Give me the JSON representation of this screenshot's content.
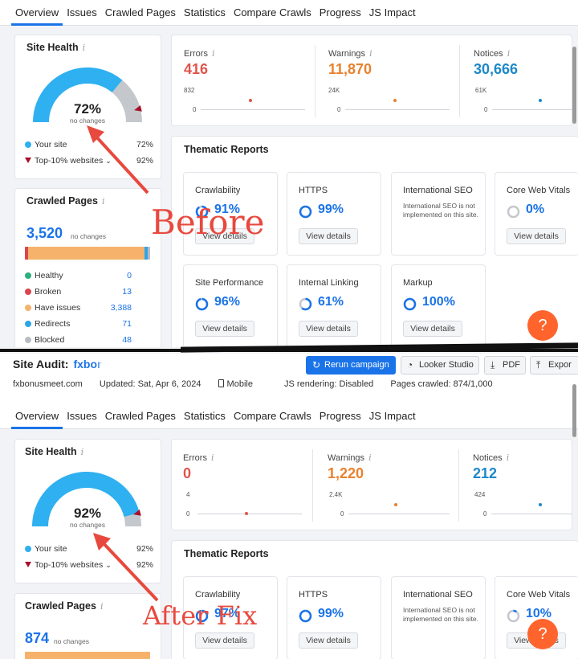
{
  "tabs": [
    "Overview",
    "Issues",
    "Crawled Pages",
    "Statistics",
    "Compare Crawls",
    "Progress",
    "JS Impact"
  ],
  "site_health": {
    "title": "Site Health",
    "info": "i",
    "your_site_label": "Your site",
    "top10_label": "Top-10% websites",
    "change": "no changes"
  },
  "metric_labels": {
    "errors": "Errors",
    "warnings": "Warnings",
    "notices": "Notices"
  },
  "crawled_title": "Crawled Pages",
  "thematic_title": "Thematic Reports",
  "view_details": "View details",
  "intl_seo_note": "International SEO is not implemented on this site.",
  "help": "?",
  "before": {
    "health_pct": "72%",
    "health_value": 72,
    "your_site": "72%",
    "top10": "92%",
    "errors": {
      "value": "416",
      "max": "832",
      "zero": "0"
    },
    "warnings": {
      "value": "11,870",
      "max": "24K",
      "zero": "0"
    },
    "notices": {
      "value": "30,666",
      "max": "61K",
      "zero": "0"
    },
    "crawled_total": "3,520",
    "crawled_note": "no changes",
    "crawled_rows": [
      {
        "label": "Healthy",
        "value": "0",
        "color": "#2bb17c"
      },
      {
        "label": "Broken",
        "value": "13",
        "color": "#d9464c"
      },
      {
        "label": "Have issues",
        "value": "3,388",
        "color": "#f6b26b"
      },
      {
        "label": "Redirects",
        "value": "71",
        "color": "#2fa5e9"
      },
      {
        "label": "Blocked",
        "value": "48",
        "color": "#b8bcc3"
      }
    ],
    "themes": [
      {
        "name": "Crawlability",
        "pct": "91%",
        "value": 91
      },
      {
        "name": "HTTPS",
        "pct": "99%",
        "value": 99
      },
      {
        "name": "International SEO"
      },
      {
        "name": "Core Web Vitals",
        "pct": "0%",
        "value": 0
      },
      {
        "name": "Site Performance",
        "pct": "96%",
        "value": 96
      },
      {
        "name": "Internal Linking",
        "pct": "61%",
        "value": 61
      },
      {
        "name": "Markup",
        "pct": "100%",
        "value": 100
      }
    ]
  },
  "after": {
    "audit_title": "Site Audit:",
    "audit_domain": "fxbor",
    "buttons": {
      "rerun": "Rerun campaign",
      "looker": "Looker Studio",
      "pdf": "PDF",
      "export": "Expor"
    },
    "meta": {
      "domain": "fxbonusmeet.com",
      "updated": "Updated: Sat, Apr 6, 2024",
      "device": "Mobile",
      "js": "JS rendering: Disabled",
      "pages": "Pages crawled: 874/1,000"
    },
    "health_pct": "92%",
    "health_value": 92,
    "your_site": "92%",
    "top10": "92%",
    "errors": {
      "value": "0",
      "max": "4",
      "zero": "0"
    },
    "warnings": {
      "value": "1,220",
      "max": "2.4K",
      "zero": "0"
    },
    "notices": {
      "value": "212",
      "max": "424",
      "zero": "0"
    },
    "crawled_total": "874",
    "crawled_note": "no changes",
    "themes": [
      {
        "name": "Crawlability",
        "pct": "97%",
        "value": 97
      },
      {
        "name": "HTTPS",
        "pct": "99%",
        "value": 99
      },
      {
        "name": "International SEO"
      },
      {
        "name": "Core Web Vitals",
        "pct": "10%",
        "value": 10
      }
    ]
  },
  "annotations": {
    "before": "Before",
    "after": "After Fix"
  },
  "colors": {
    "accent": "#1a73e8",
    "error": "#e0544a",
    "warning": "#e8822d",
    "notice": "#1e88c9",
    "gauge": "#2fb0f0",
    "gauge_rest": "#c4c7cc",
    "annotation": "#e8493e",
    "help": "#ff642d"
  }
}
